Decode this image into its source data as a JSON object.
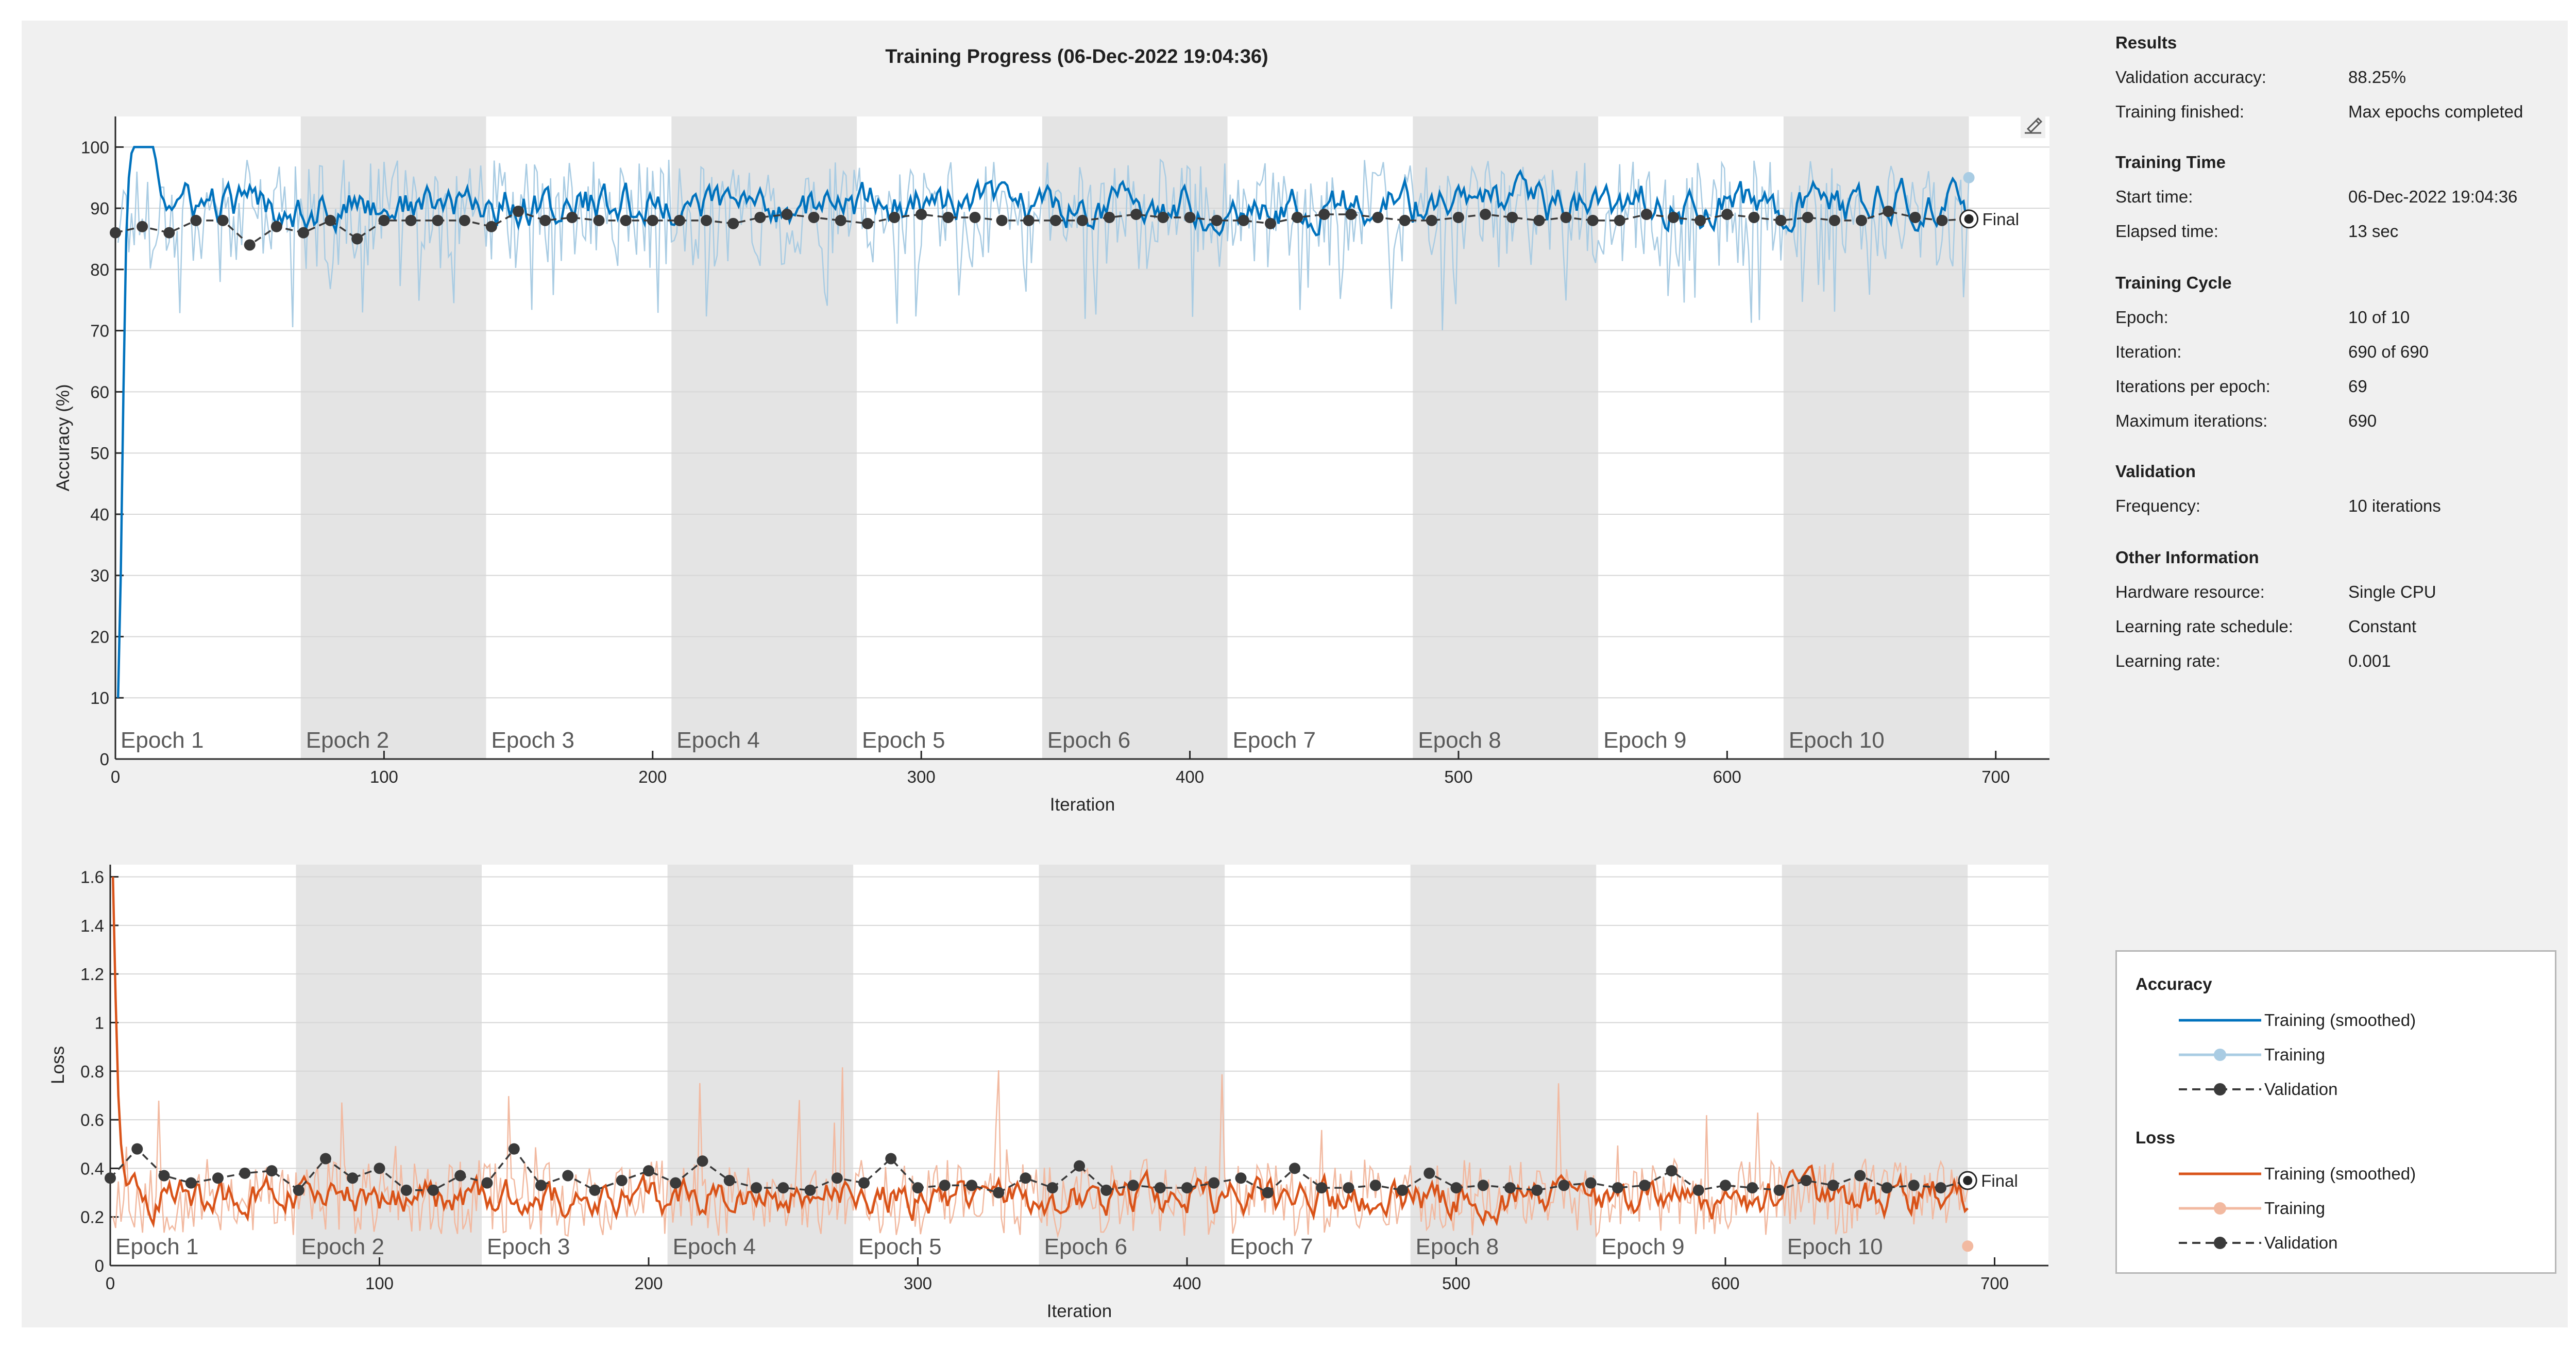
{
  "title": "Training Progress (06-Dec-2022 19:04:36)",
  "colors": {
    "acc_smooth": "#0072bd",
    "acc_raw": "#a9cce3",
    "loss_smooth": "#d95319",
    "loss_raw": "#f2b9a0",
    "validation": "#3a3a3a",
    "epoch_band": "#e4e4e4"
  },
  "info": {
    "results": {
      "heading": "Results",
      "rows": [
        {
          "label": "Validation accuracy:",
          "value": "88.25%"
        },
        {
          "label": "Training finished:",
          "value": "Max epochs completed"
        }
      ]
    },
    "time": {
      "heading": "Training Time",
      "rows": [
        {
          "label": "Start time:",
          "value": "06-Dec-2022 19:04:36"
        },
        {
          "label": "Elapsed time:",
          "value": "13 sec"
        }
      ]
    },
    "cycle": {
      "heading": "Training Cycle",
      "rows": [
        {
          "label": "Epoch:",
          "value": "10 of 10"
        },
        {
          "label": "Iteration:",
          "value": "690 of 690"
        },
        {
          "label": "Iterations per epoch:",
          "value": "69"
        },
        {
          "label": "Maximum iterations:",
          "value": "690"
        }
      ]
    },
    "validation": {
      "heading": "Validation",
      "rows": [
        {
          "label": "Frequency:",
          "value": "10 iterations"
        }
      ]
    },
    "other": {
      "heading": "Other Information",
      "rows": [
        {
          "label": "Hardware resource:",
          "value": "Single CPU"
        },
        {
          "label": "Learning rate schedule:",
          "value": "Constant"
        },
        {
          "label": "Learning rate:",
          "value": "0.001"
        }
      ]
    }
  },
  "legend": {
    "accuracy_title": "Accuracy",
    "loss_title": "Loss",
    "items": [
      "Training (smoothed)",
      "Training",
      "Validation"
    ]
  },
  "chart_data": [
    {
      "type": "line",
      "name": "accuracy",
      "title": "Training Progress (06-Dec-2022 19:04:36)",
      "xlabel": "Iteration",
      "ylabel": "Accuracy (%)",
      "xlim": [
        0,
        720
      ],
      "ylim": [
        0,
        105
      ],
      "xticks": [
        0,
        100,
        200,
        300,
        400,
        500,
        600,
        700
      ],
      "yticks": [
        0,
        10,
        20,
        30,
        40,
        50,
        60,
        70,
        80,
        90,
        100
      ],
      "epochs": [
        "Epoch 1",
        "Epoch 2",
        "Epoch 3",
        "Epoch 4",
        "Epoch 5",
        "Epoch 6",
        "Epoch 7",
        "Epoch 8",
        "Epoch 9",
        "Epoch 10"
      ],
      "iterations_per_epoch": 69,
      "final_label": "Final",
      "final_value": 88.25,
      "final_x": 690,
      "series": [
        {
          "name": "Training (smoothed)",
          "start": [
            10,
            30,
            60,
            85,
            95,
            99,
            100,
            100,
            100,
            100,
            100,
            100,
            100,
            100,
            98,
            95
          ],
          "mean": 90.5,
          "amp": 4.5,
          "min": 80,
          "max": 100
        },
        {
          "name": "Training",
          "mean": 89,
          "amp": 9,
          "min": 70,
          "max": 100
        },
        {
          "name": "Validation",
          "x": [
            0,
            10,
            20,
            30,
            40,
            50,
            60,
            70,
            80,
            90,
            100,
            110,
            120,
            130,
            140,
            150,
            160,
            170,
            180,
            190,
            200,
            210,
            220,
            230,
            240,
            250,
            260,
            270,
            280,
            290,
            300,
            310,
            320,
            330,
            340,
            350,
            360,
            370,
            380,
            390,
            400,
            410,
            420,
            430,
            440,
            450,
            460,
            470,
            480,
            490,
            500,
            510,
            520,
            530,
            540,
            550,
            560,
            570,
            580,
            590,
            600,
            610,
            620,
            630,
            640,
            650,
            660,
            670,
            680,
            690
          ],
          "values": [
            86,
            87,
            86,
            88,
            88,
            84,
            87,
            86,
            88,
            85,
            88,
            88,
            88,
            88,
            87,
            89.5,
            88,
            88.5,
            88,
            88,
            88,
            88,
            88,
            87.5,
            88.5,
            89,
            88.5,
            88,
            87.5,
            88.5,
            89,
            88.5,
            88.5,
            88,
            88,
            88,
            88,
            88.5,
            89,
            88.5,
            88.5,
            88,
            88,
            87.5,
            88.5,
            89,
            89,
            88.5,
            88,
            88,
            88.5,
            89,
            88.5,
            88,
            88.5,
            88,
            88,
            89,
            88.5,
            88,
            89,
            88.5,
            88,
            88.5,
            88,
            88,
            89.5,
            88.5,
            88,
            88.25
          ]
        }
      ]
    },
    {
      "type": "line",
      "name": "loss",
      "title": "",
      "xlabel": "Iteration",
      "ylabel": "Loss",
      "xlim": [
        0,
        720
      ],
      "ylim": [
        0,
        1.65
      ],
      "xticks": [
        0,
        100,
        200,
        300,
        400,
        500,
        600,
        700
      ],
      "yticks": [
        0,
        0.2,
        0.4,
        0.6,
        0.8,
        1,
        1.2,
        1.4,
        1.6
      ],
      "yticklabels": [
        "0",
        "0.2",
        "0.4",
        "0.6",
        "0.8",
        "1",
        "1.2",
        "1.4",
        "1.6"
      ],
      "epochs": [
        "Epoch 1",
        "Epoch 2",
        "Epoch 3",
        "Epoch 4",
        "Epoch 5",
        "Epoch 6",
        "Epoch 7",
        "Epoch 8",
        "Epoch 9",
        "Epoch 10"
      ],
      "iterations_per_epoch": 69,
      "final_label": "Final",
      "final_value": 0.35,
      "final_x": 690,
      "series": [
        {
          "name": "Training (smoothed)",
          "start": [
            1.6,
            1.1,
            0.7,
            0.5,
            0.4
          ],
          "mean": 0.28,
          "amp": 0.1,
          "min": 0.08,
          "max": 0.5
        },
        {
          "name": "Training",
          "mean": 0.28,
          "amp": 0.16,
          "min": 0.03,
          "max": 0.82
        },
        {
          "name": "Validation",
          "x": [
            0,
            10,
            20,
            30,
            40,
            50,
            60,
            70,
            80,
            90,
            100,
            110,
            120,
            130,
            140,
            150,
            160,
            170,
            180,
            190,
            200,
            210,
            220,
            230,
            240,
            250,
            260,
            270,
            280,
            290,
            300,
            310,
            320,
            330,
            340,
            350,
            360,
            370,
            380,
            390,
            400,
            410,
            420,
            430,
            440,
            450,
            460,
            470,
            480,
            490,
            500,
            510,
            520,
            530,
            540,
            550,
            560,
            570,
            580,
            590,
            600,
            610,
            620,
            630,
            640,
            650,
            660,
            670,
            680,
            690
          ],
          "values": [
            0.36,
            0.48,
            0.37,
            0.34,
            0.36,
            0.38,
            0.39,
            0.31,
            0.44,
            0.36,
            0.4,
            0.31,
            0.31,
            0.37,
            0.34,
            0.48,
            0.33,
            0.37,
            0.31,
            0.35,
            0.39,
            0.34,
            0.43,
            0.35,
            0.32,
            0.32,
            0.31,
            0.36,
            0.34,
            0.44,
            0.32,
            0.33,
            0.33,
            0.3,
            0.36,
            0.32,
            0.41,
            0.31,
            0.33,
            0.32,
            0.32,
            0.34,
            0.36,
            0.3,
            0.4,
            0.32,
            0.32,
            0.33,
            0.31,
            0.38,
            0.32,
            0.33,
            0.32,
            0.31,
            0.33,
            0.34,
            0.32,
            0.33,
            0.39,
            0.31,
            0.33,
            0.32,
            0.31,
            0.35,
            0.33,
            0.37,
            0.32,
            0.33,
            0.32,
            0.35
          ]
        }
      ]
    }
  ]
}
